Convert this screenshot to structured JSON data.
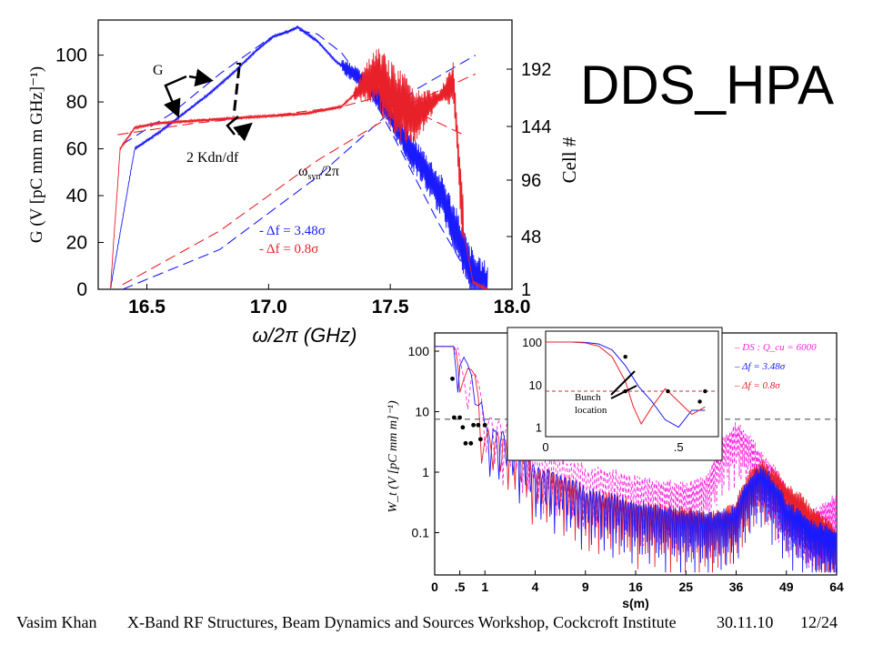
{
  "slide": {
    "title": "DDS_HPA",
    "footer": {
      "author": "Vasim Khan",
      "event": "X-Band RF Structures, Beam Dynamics and Sources Workshop, Cockcroft Institute",
      "date": "30.11.10",
      "page": "12/24"
    }
  },
  "colors": {
    "blue": "#1a1aff",
    "red": "#e8202a",
    "magenta": "#ff22dd",
    "grey": "#666666"
  },
  "chart_data": [
    {
      "type": "line",
      "xlabel": "ω/2π (GHz)",
      "ylabel": "G (V [pC mm m GHz]⁻¹)",
      "ylabel2": "Cell #",
      "xlim": [
        16.3,
        18.0
      ],
      "ylim": [
        0,
        115
      ],
      "x_ticks": [
        "16.5",
        "17.0",
        "17.5",
        "18.0"
      ],
      "y_ticks": [
        "0",
        "20",
        "40",
        "60",
        "80",
        "100"
      ],
      "y2_ticks": [
        "1",
        "48",
        "96",
        "144",
        "192"
      ],
      "grid": false,
      "annotations": {
        "g_label": "G",
        "kdn_label": "2 Kdn/df",
        "omega_main": "ω",
        "omega_sub": "syn",
        "omega_tail": "/2π"
      },
      "legend": [
        {
          "prefix": "- ",
          "text": "Δf = 3.48σ",
          "color": "#1a1aff"
        },
        {
          "prefix": "- ",
          "text": "Δf = 0.8σ",
          "color": "#e8202a"
        }
      ],
      "series": [
        {
          "name": "Δf = 3.48σ",
          "color": "#1a1aff",
          "x": [
            16.35,
            16.45,
            16.55,
            16.65,
            16.75,
            16.85,
            16.95,
            17.02,
            17.08,
            17.12,
            17.2,
            17.28,
            17.35,
            17.42,
            17.5,
            17.58,
            17.65,
            17.72,
            17.78,
            17.82,
            17.86,
            17.9
          ],
          "y": [
            0,
            60,
            67,
            75,
            83,
            92,
            102,
            108,
            110,
            112,
            106,
            97,
            92,
            86,
            74,
            60,
            50,
            38,
            22,
            10,
            2,
            0
          ]
        },
        {
          "name": "Δf = 0.8σ",
          "color": "#e8202a",
          "x": [
            16.35,
            16.39,
            16.45,
            16.55,
            16.7,
            16.85,
            17.0,
            17.15,
            17.3,
            17.38,
            17.44,
            17.5,
            17.6,
            17.7,
            17.76,
            17.8,
            17.84,
            17.9
          ],
          "y": [
            0,
            60,
            69,
            71,
            72,
            73,
            74,
            75,
            78,
            86,
            92,
            82,
            74,
            82,
            88,
            25,
            3,
            0
          ]
        },
        {
          "name": "Kdn/df fit 3.48σ",
          "color": "#1a1aff",
          "dashed": true,
          "x": [
            16.4,
            16.6,
            16.8,
            17.0,
            17.1,
            17.2,
            17.3,
            17.4,
            17.5,
            17.6,
            17.7,
            17.8
          ],
          "y": [
            62,
            75,
            92,
            107,
            111,
            109,
            101,
            87,
            68,
            48,
            28,
            10
          ]
        },
        {
          "name": "Kdn/df fit 0.8σ",
          "color": "#e8202a",
          "dashed": true,
          "x": [
            16.38,
            16.7,
            17.0,
            17.3,
            17.45,
            17.6,
            17.8
          ],
          "y": [
            66,
            71,
            74,
            78,
            82,
            76,
            66
          ]
        },
        {
          "name": "ω_syn/2π 3.48σ",
          "color": "#1a1aff",
          "dashed": true,
          "x": [
            16.4,
            16.8,
            17.2,
            17.6,
            17.85
          ],
          "y": [
            0,
            17,
            48,
            85,
            100
          ]
        },
        {
          "name": "ω_syn/2π 0.8σ",
          "color": "#e8202a",
          "dashed": true,
          "x": [
            16.4,
            16.8,
            17.2,
            17.6,
            17.85
          ],
          "y": [
            2,
            25,
            55,
            80,
            92
          ]
        }
      ]
    },
    {
      "type": "line",
      "xlabel": "s(m)",
      "ylabel": "W_t (V [pC mm m]⁻¹)",
      "ylog": true,
      "ylim": [
        0.02,
        200
      ],
      "x_ticks": [
        "0",
        ".5",
        "1",
        "4",
        "9",
        "16",
        "25",
        "36",
        "49",
        "64"
      ],
      "y_ticks": [
        "100",
        "10",
        "1",
        "0.1"
      ],
      "legend": [
        {
          "text": "DS : Q_cu = 6000",
          "color": "#ff22dd"
        },
        {
          "text": "Δf = 3.48σ",
          "color": "#1a1aff"
        },
        {
          "text": "Δf = 0.8σ",
          "color": "#e8202a"
        }
      ],
      "reference_level": 7.5,
      "envelope_magenta": {
        "u": [
          0,
          0.3,
          1,
          3,
          5,
          7,
          9,
          11,
          13,
          15,
          18,
          21,
          24,
          26,
          28,
          29
        ],
        "y": [
          120,
          120,
          8,
          2.5,
          1.4,
          1.0,
          0.8,
          0.65,
          0.55,
          0.5,
          0.5,
          0.55,
          0.7,
          0.8,
          0.55,
          0.3
        ]
      },
      "envelope_blue": {
        "u": [
          0,
          0.3,
          1,
          3,
          5,
          7,
          9,
          11,
          13,
          15,
          17,
          19,
          21,
          22,
          23,
          24
        ],
        "y": [
          120,
          120,
          6,
          1.2,
          0.6,
          0.4,
          0.3,
          0.25,
          0.22,
          0.2,
          0.2,
          0.25,
          0.3,
          0.4,
          0.5,
          0.3
        ]
      },
      "envelope_red": {
        "u": [
          0,
          0.3,
          1,
          3,
          5,
          7,
          9,
          11,
          13,
          15,
          17,
          19,
          21,
          22,
          23,
          24
        ],
        "y": [
          120,
          120,
          5,
          1.2,
          0.6,
          0.4,
          0.3,
          0.28,
          0.26,
          0.22,
          0.2,
          0.18,
          0.3,
          0.6,
          0.5,
          0.2
        ]
      },
      "bunch_points": [
        {
          "u": 0.25,
          "y": 35
        },
        {
          "u": 0.3,
          "y": 8
        },
        {
          "u": 0.5,
          "y": 8
        },
        {
          "u": 0.55,
          "y": 5.5
        },
        {
          "u": 0.6,
          "y": 3
        },
        {
          "u": 0.7,
          "y": 3
        },
        {
          "u": 0.75,
          "y": 6
        },
        {
          "u": 0.85,
          "y": 6
        },
        {
          "u": 0.9,
          "y": 3.5
        },
        {
          "u": 1.0,
          "y": 6
        }
      ],
      "inset": {
        "x_ticks": [
          "0",
          ".5"
        ],
        "y_ticks": [
          "100",
          "10",
          "1"
        ],
        "annotation": [
          "Bunch",
          "location"
        ],
        "reference_level": 7,
        "blue": {
          "x": [
            0,
            0.1,
            0.15,
            0.2,
            0.25,
            0.3,
            0.35,
            0.4,
            0.45,
            0.5,
            0.55,
            0.6
          ],
          "y": [
            100,
            100,
            98,
            90,
            65,
            28,
            9,
            4,
            1.5,
            1,
            2.5,
            2.5
          ]
        },
        "red": {
          "x": [
            0,
            0.1,
            0.15,
            0.2,
            0.25,
            0.3,
            0.33,
            0.36,
            0.4,
            0.45,
            0.5,
            0.55,
            0.6
          ],
          "y": [
            100,
            100,
            95,
            80,
            45,
            12,
            3,
            1.2,
            3,
            8,
            4,
            2,
            3
          ]
        },
        "points": [
          {
            "x": 0.3,
            "y": 45
          },
          {
            "x": 0.3,
            "y": 7
          },
          {
            "x": 0.46,
            "y": 7
          },
          {
            "x": 0.58,
            "y": 4
          },
          {
            "x": 0.6,
            "y": 7
          }
        ]
      }
    }
  ]
}
